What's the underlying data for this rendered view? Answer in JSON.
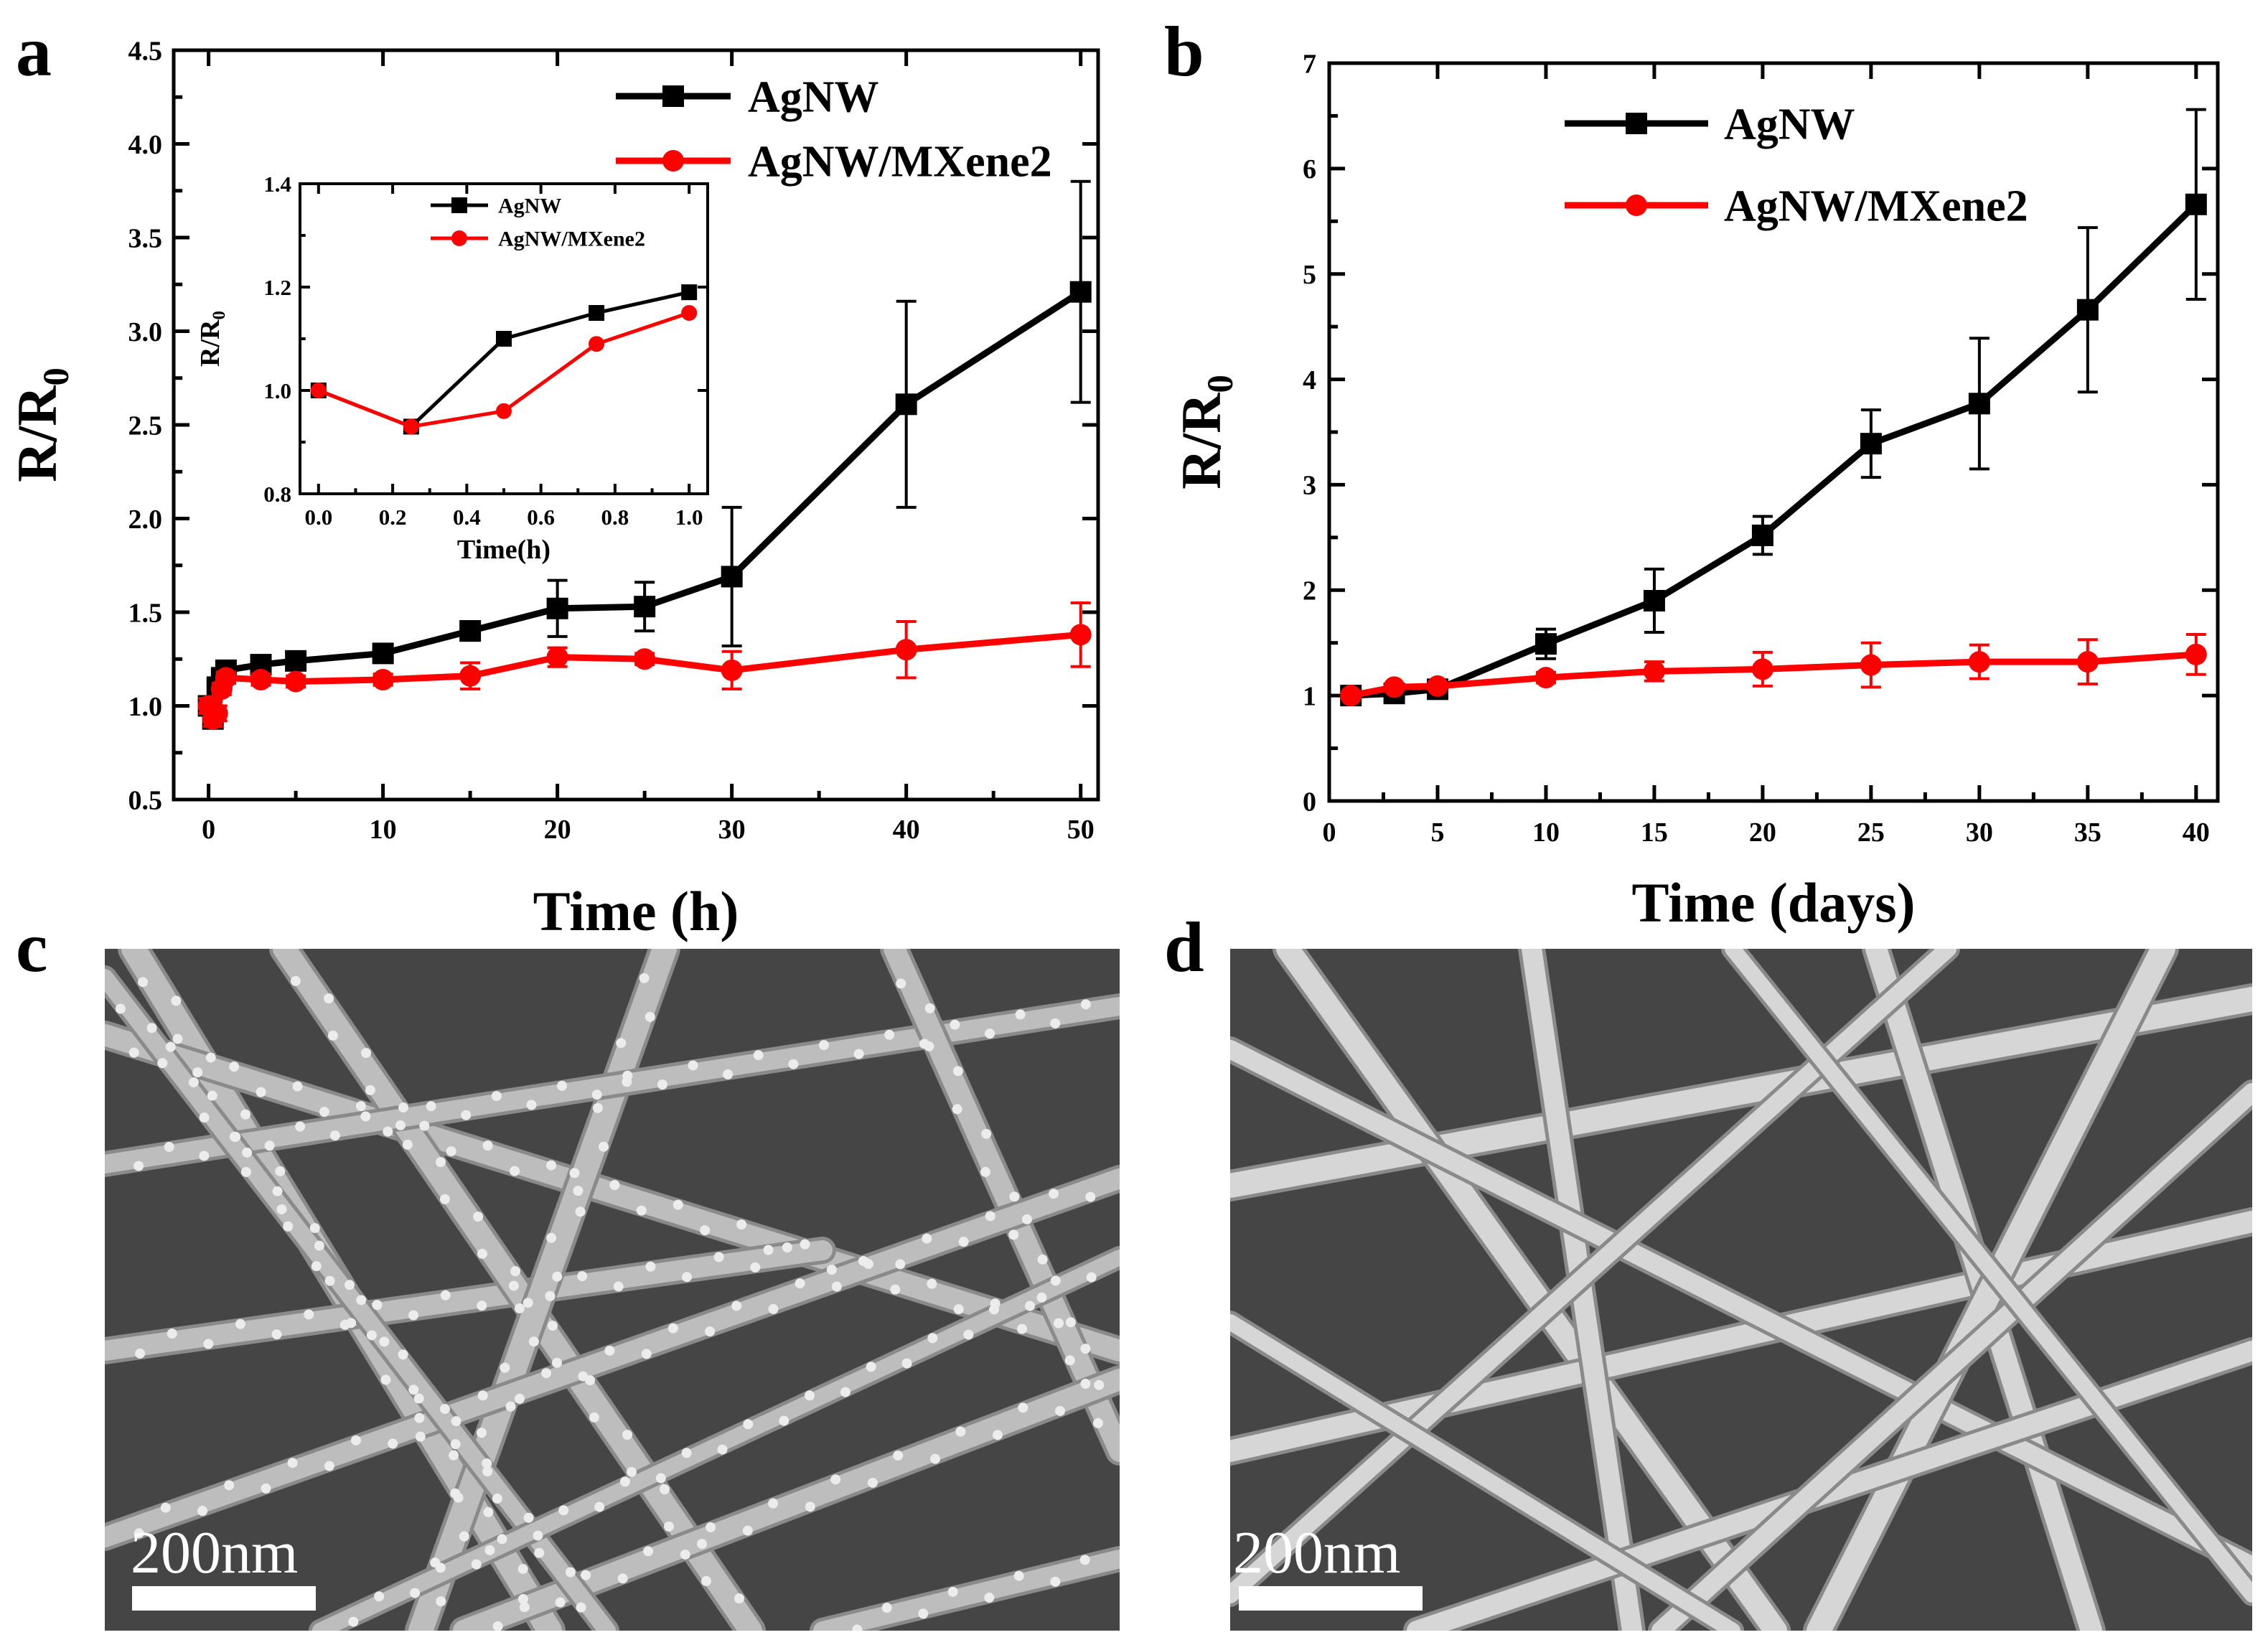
{
  "panels": {
    "a": {
      "label": "a"
    },
    "b": {
      "label": "b"
    },
    "c": {
      "label": "c",
      "scale_bar": "200nm"
    },
    "d": {
      "label": "d",
      "scale_bar": "200nm"
    }
  },
  "colors": {
    "agnw": "#000000",
    "mxene": "#ff0000",
    "sem_bg": "#454545",
    "wire": "#c8c8c8"
  },
  "chart_data": [
    {
      "id": "a-main",
      "type": "line",
      "xlabel": "Time (h)",
      "ylabel": "R/R0",
      "xlim": [
        -2,
        51
      ],
      "ylim": [
        0.5,
        4.5
      ],
      "xticks": [
        0,
        10,
        20,
        30,
        40,
        50
      ],
      "yticks": [
        0.5,
        1.0,
        1.5,
        2.0,
        2.5,
        3.0,
        3.5,
        4.0,
        4.5
      ],
      "xticklabels": [
        "0",
        "10",
        "20",
        "30",
        "40",
        "50"
      ],
      "yticklabels": [
        "0.5",
        "1.0",
        "1.5",
        "2.0",
        "2.5",
        "3.0",
        "3.5",
        "4.0",
        "4.5"
      ],
      "legend": "top-right",
      "series": [
        {
          "name": "AgNW",
          "color": "#000000",
          "marker": "square",
          "x": [
            0,
            0.25,
            0.5,
            0.75,
            1,
            3,
            5,
            10,
            15,
            20,
            25,
            30,
            40,
            50
          ],
          "y": [
            1.0,
            0.93,
            1.1,
            1.15,
            1.19,
            1.22,
            1.24,
            1.28,
            1.4,
            1.52,
            1.53,
            1.69,
            2.61,
            3.21
          ],
          "err": [
            0,
            0,
            0,
            0,
            0.03,
            0.03,
            0.03,
            0.03,
            0.05,
            0.15,
            0.13,
            0.37,
            0.55,
            0.59
          ]
        },
        {
          "name": "AgNW/MXene2",
          "color": "#ff0000",
          "marker": "circle",
          "x": [
            0,
            0.25,
            0.5,
            0.75,
            1,
            3,
            5,
            10,
            15,
            20,
            25,
            30,
            40,
            50
          ],
          "y": [
            1.0,
            0.93,
            0.96,
            1.09,
            1.15,
            1.14,
            1.13,
            1.14,
            1.16,
            1.26,
            1.25,
            1.19,
            1.3,
            1.38
          ],
          "err": [
            0.04,
            0.04,
            0.04,
            0.03,
            0.03,
            0.03,
            0.03,
            0.03,
            0.07,
            0.05,
            0.03,
            0.1,
            0.15,
            0.17
          ]
        }
      ]
    },
    {
      "id": "a-inset",
      "type": "line",
      "xlabel": "Time(h)",
      "ylabel": "R/R0",
      "xlim": [
        -0.05,
        1.05
      ],
      "ylim": [
        0.8,
        1.4
      ],
      "xticks": [
        0.0,
        0.2,
        0.4,
        0.6,
        0.8,
        1.0
      ],
      "yticks": [
        0.8,
        1.0,
        1.2,
        1.4
      ],
      "xticklabels": [
        "0.0",
        "0.2",
        "0.4",
        "0.6",
        "0.8",
        "1.0"
      ],
      "yticklabels": [
        "0.8",
        "1.0",
        "1.2",
        "1.4"
      ],
      "legend": "top-right",
      "series": [
        {
          "name": "AgNW",
          "color": "#000000",
          "marker": "square",
          "x": [
            0,
            0.25,
            0.5,
            0.75,
            1.0
          ],
          "y": [
            1.0,
            0.93,
            1.1,
            1.15,
            1.19
          ]
        },
        {
          "name": "AgNW/MXene2",
          "color": "#ff0000",
          "marker": "circle",
          "x": [
            0,
            0.25,
            0.5,
            0.75,
            1.0
          ],
          "y": [
            1.0,
            0.93,
            0.96,
            1.09,
            1.15
          ]
        }
      ]
    },
    {
      "id": "b-main",
      "type": "line",
      "xlabel": "Time (days)",
      "ylabel": "R/R0",
      "xlim": [
        0,
        41
      ],
      "ylim": [
        0,
        7
      ],
      "xticks": [
        0,
        5,
        10,
        15,
        20,
        25,
        30,
        35,
        40
      ],
      "yticks": [
        0,
        1,
        2,
        3,
        4,
        5,
        6,
        7
      ],
      "xticklabels": [
        "0",
        "5",
        "10",
        "15",
        "20",
        "25",
        "30",
        "35",
        "40"
      ],
      "yticklabels": [
        "0",
        "1",
        "2",
        "3",
        "4",
        "5",
        "6",
        "7"
      ],
      "legend": "top-left",
      "series": [
        {
          "name": "AgNW",
          "color": "#000000",
          "marker": "square",
          "x": [
            1,
            3,
            5,
            10,
            15,
            20,
            25,
            30,
            35,
            40
          ],
          "y": [
            1.0,
            1.02,
            1.06,
            1.49,
            1.9,
            2.52,
            3.39,
            3.77,
            4.66,
            5.66
          ],
          "err": [
            0.03,
            0.03,
            0.04,
            0.14,
            0.3,
            0.18,
            0.32,
            0.62,
            0.78,
            0.9
          ]
        },
        {
          "name": "AgNW/MXene2",
          "color": "#ff0000",
          "marker": "circle",
          "x": [
            1,
            3,
            5,
            10,
            15,
            20,
            25,
            30,
            35,
            40
          ],
          "y": [
            1.0,
            1.08,
            1.09,
            1.17,
            1.23,
            1.25,
            1.29,
            1.32,
            1.32,
            1.39
          ],
          "err": [
            0.02,
            0.03,
            0.03,
            0.05,
            0.09,
            0.16,
            0.21,
            0.16,
            0.21,
            0.19
          ]
        }
      ]
    }
  ]
}
